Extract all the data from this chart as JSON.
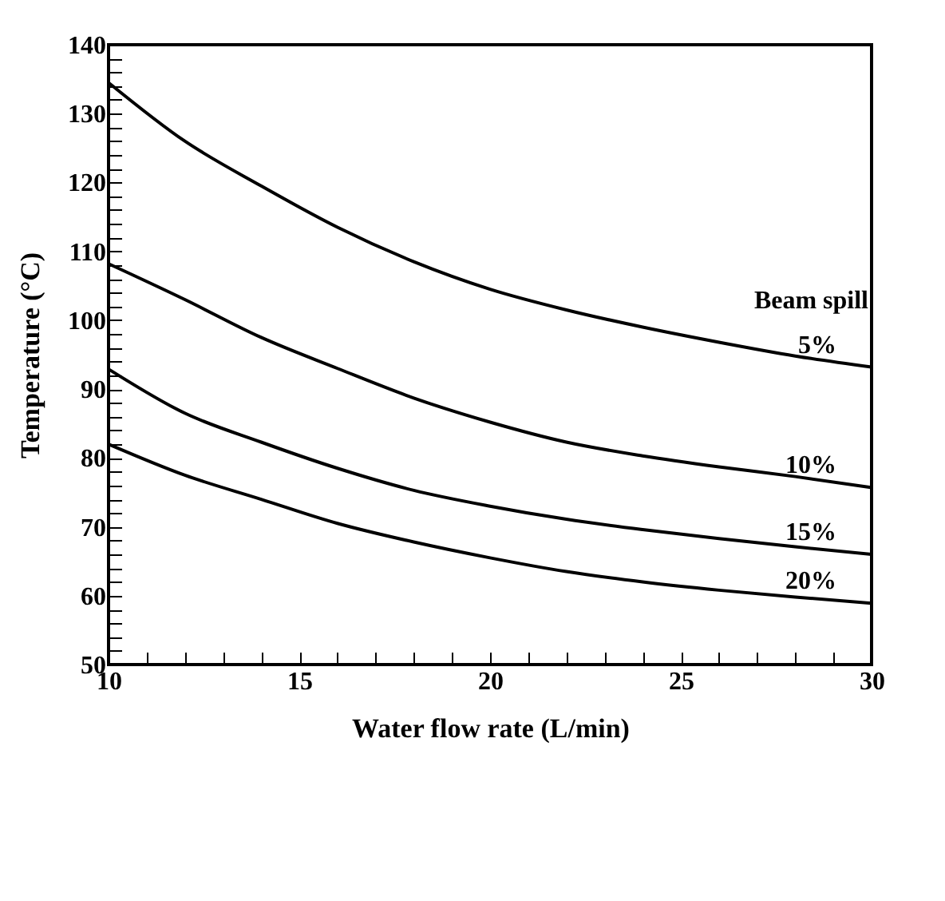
{
  "chart_data": {
    "type": "line",
    "xlabel": "Water flow rate (L/min)",
    "ylabel": "Temperature (°C)",
    "annotations": [
      "Beam spill"
    ],
    "x": [
      10,
      12,
      14,
      16,
      18,
      20,
      22,
      24,
      26,
      28,
      30
    ],
    "series": [
      {
        "name": "5%",
        "color": "#000000",
        "values": [
          134.5,
          126,
          119.5,
          113.5,
          108.5,
          104.5,
          101.5,
          99,
          96.8,
          94.8,
          93.2
        ]
      },
      {
        "name": "10%",
        "color": "#000000",
        "values": [
          108.2,
          103,
          97.5,
          93,
          88.7,
          85.2,
          82.3,
          80.3,
          78.7,
          77.3,
          75.7
        ]
      },
      {
        "name": "15%",
        "color": "#000000",
        "values": [
          92.9,
          86.5,
          82.3,
          78.5,
          75.3,
          73,
          71.1,
          69.6,
          68.3,
          67.1,
          66
        ]
      },
      {
        "name": "20%",
        "color": "#000000",
        "values": [
          82,
          77.5,
          74,
          70.5,
          67.8,
          65.5,
          63.5,
          62,
          60.8,
          59.8,
          58.9
        ]
      }
    ],
    "xlim": [
      10,
      30
    ],
    "ylim": [
      50,
      140
    ],
    "xticks": [
      10,
      {
        "value": 11,
        "label": null
      },
      {
        "value": 12,
        "label": null
      },
      {
        "value": 13,
        "label": null
      },
      {
        "value": 14,
        "label": null
      },
      15,
      {
        "value": 16,
        "label": null
      },
      {
        "value": 17,
        "label": null
      },
      {
        "value": 18,
        "label": null
      },
      {
        "value": 19,
        "label": null
      },
      20,
      {
        "value": 21,
        "label": null
      },
      {
        "value": 22,
        "label": null
      },
      {
        "value": 23,
        "label": null
      },
      {
        "value": 24,
        "label": null
      },
      25,
      {
        "value": 26,
        "label": null
      },
      {
        "value": 27,
        "label": null
      },
      {
        "value": 28,
        "label": null
      },
      {
        "value": 29,
        "label": null
      },
      30
    ],
    "yticks": [
      50,
      {
        "value": 52,
        "label": null
      },
      {
        "value": 54,
        "label": null
      },
      {
        "value": 56,
        "label": null
      },
      {
        "value": 58,
        "label": null
      },
      60,
      {
        "value": 62,
        "label": null
      },
      {
        "value": 64,
        "label": null
      },
      {
        "value": 66,
        "label": null
      },
      {
        "value": 68,
        "label": null
      },
      70,
      {
        "value": 72,
        "label": null
      },
      {
        "value": 74,
        "label": null
      },
      {
        "value": 76,
        "label": null
      },
      {
        "value": 78,
        "label": null
      },
      80,
      {
        "value": 82,
        "label": null
      },
      {
        "value": 84,
        "label": null
      },
      {
        "value": 86,
        "label": null
      },
      {
        "value": 88,
        "label": null
      },
      90,
      {
        "value": 92,
        "label": null
      },
      {
        "value": 94,
        "label": null
      },
      {
        "value": 96,
        "label": null
      },
      {
        "value": 98,
        "label": null
      },
      100,
      {
        "value": 102,
        "label": null
      },
      {
        "value": 104,
        "label": null
      },
      {
        "value": 106,
        "label": null
      },
      {
        "value": 108,
        "label": null
      },
      110,
      {
        "value": 112,
        "label": null
      },
      {
        "value": 114,
        "label": null
      },
      {
        "value": 116,
        "label": null
      },
      {
        "value": 118,
        "label": null
      },
      120,
      {
        "value": 122,
        "label": null
      },
      {
        "value": 124,
        "label": null
      },
      {
        "value": 126,
        "label": null
      },
      {
        "value": 128,
        "label": null
      },
      130,
      {
        "value": 132,
        "label": null
      },
      {
        "value": 134,
        "label": null
      },
      {
        "value": 136,
        "label": null
      },
      {
        "value": 138,
        "label": null
      },
      140
    ],
    "grid": false,
    "legend": false,
    "marker": "none",
    "line_style": "solid"
  }
}
